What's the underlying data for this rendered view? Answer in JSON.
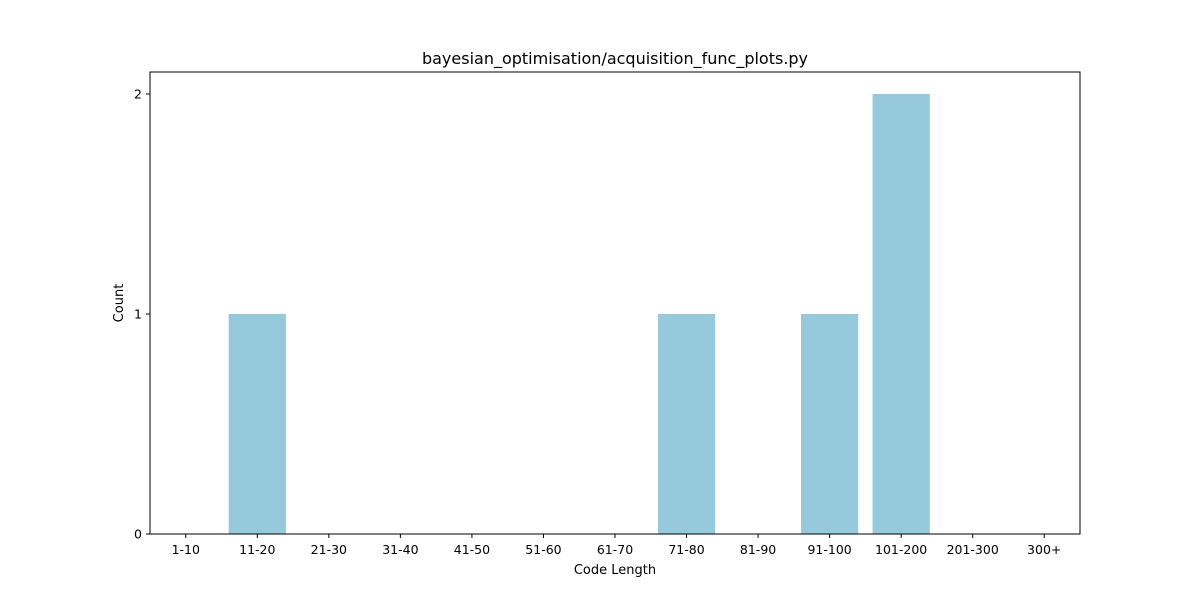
{
  "chart_data": {
    "type": "bar",
    "title": "bayesian_optimisation/acquisition_func_plots.py",
    "xlabel": "Code Length",
    "ylabel": "Count",
    "categories": [
      "1-10",
      "11-20",
      "21-30",
      "31-40",
      "41-50",
      "51-60",
      "61-70",
      "71-80",
      "81-90",
      "91-100",
      "101-200",
      "201-300",
      "300+"
    ],
    "values": [
      0,
      1,
      0,
      0,
      0,
      0,
      0,
      1,
      0,
      1,
      2,
      0,
      0
    ],
    "yticks": [
      0,
      1,
      2
    ],
    "ylim": [
      0,
      2.1
    ],
    "grid": false,
    "legend": false,
    "colors": {
      "bar": "#96c9dc",
      "axes": "#000000",
      "background": "#ffffff"
    }
  }
}
